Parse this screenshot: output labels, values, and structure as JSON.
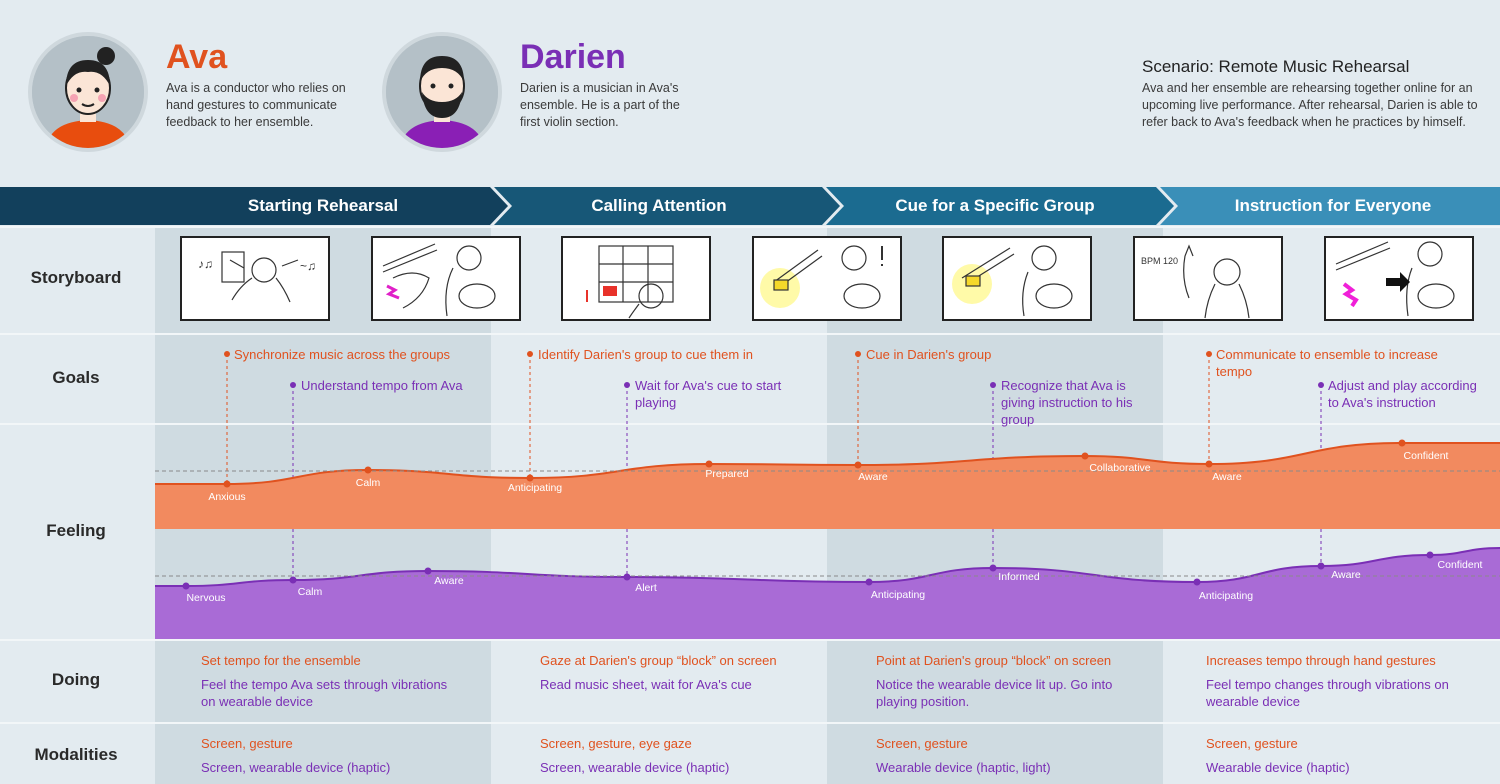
{
  "personas": [
    {
      "name": "Ava",
      "description": "Ava is a conductor who relies on hand gestures to communicate feedback to her ensemble.",
      "color": "#e0521f"
    },
    {
      "name": "Darien",
      "description": "Darien is a musician in Ava's ensemble. He is a part of the first violin section.",
      "color": "#7a2fb5"
    }
  ],
  "scenario": {
    "title": "Scenario: Remote Music Rehearsal",
    "description": "Ava and her ensemble are rehearsing together online for an upcoming live performance. After rehearsal, Darien is able to refer back to Ava's feedback when he practices by himself."
  },
  "phases": [
    "Starting Rehearsal",
    "Calling Attention",
    "Cue for a Specific Group",
    "Instruction for Everyone"
  ],
  "row_labels": {
    "storyboard": "Storyboard",
    "goals": "Goals",
    "feeling": "Feeling",
    "doing": "Doing",
    "modalities": "Modalities"
  },
  "storyboard_frames": [
    {
      "scene": "conductor-with-music-notes",
      "text": ""
    },
    {
      "scene": "violinist-feels-vibration",
      "text": ""
    },
    {
      "scene": "video-call-grid",
      "text": ""
    },
    {
      "scene": "wearable-lights-up-violinist",
      "text": ""
    },
    {
      "scene": "wearable-glow-violinist",
      "text": ""
    },
    {
      "scene": "conductor-gesture-tempo",
      "text": "BPM 120"
    },
    {
      "scene": "violinist-arrow-vibration",
      "text": ""
    }
  ],
  "goals": [
    {
      "ava": "Synchronize music across the groups",
      "darien": "Understand tempo from Ava"
    },
    {
      "ava": "Identify Darien's group to cue them in",
      "darien": "Wait for Ava's cue to start playing"
    },
    {
      "ava": "Cue in Darien's group",
      "darien": "Recognize that Ava is giving instruction to his group"
    },
    {
      "ava": "Communicate to ensemble to increase tempo",
      "darien": "Adjust and play according to Ava's instruction"
    }
  ],
  "feeling": {
    "ava": [
      "Anxious",
      "Calm",
      "Anticipating",
      "Prepared",
      "Aware",
      "Collaborative",
      "Aware",
      "Confident"
    ],
    "darien": [
      "Nervous",
      "Calm",
      "Aware",
      "Alert",
      "Anticipating",
      "Informed",
      "Anticipating",
      "Aware",
      "Confident"
    ]
  },
  "doing": [
    {
      "ava": "Set tempo for the ensemble",
      "darien": "Feel the tempo Ava sets through vibrations on wearable device"
    },
    {
      "ava": "Gaze at Darien's group “block” on screen",
      "darien": "Read music sheet, wait for Ava's cue"
    },
    {
      "ava": "Point at Darien's group “block” on screen",
      "darien": "Notice the wearable device lit up. Go into playing position."
    },
    {
      "ava": "Increases tempo through hand gestures",
      "darien": "Feel tempo changes through vibrations on wearable device"
    }
  ],
  "modalities": [
    {
      "ava": "Screen, gesture",
      "darien": "Screen, wearable device (haptic)"
    },
    {
      "ava": "Screen, gesture, eye gaze",
      "darien": "Screen, wearable device (haptic)"
    },
    {
      "ava": "Screen, gesture",
      "darien": "Wearable device (haptic, light)"
    },
    {
      "ava": "Screen, gesture",
      "darien": "Wearable device (haptic)"
    }
  ],
  "colors": {
    "ava": "#e0521f",
    "ava_fill": "#f28a5f",
    "darien": "#7a2fb5",
    "darien_fill": "#a96bd6",
    "phase_1": "#12405c",
    "phase_2": "#175777",
    "phase_3": "#1b6b90",
    "phase_4": "#3a8fb8",
    "shade": "#cfdbe1",
    "background": "#e3ebf0"
  }
}
